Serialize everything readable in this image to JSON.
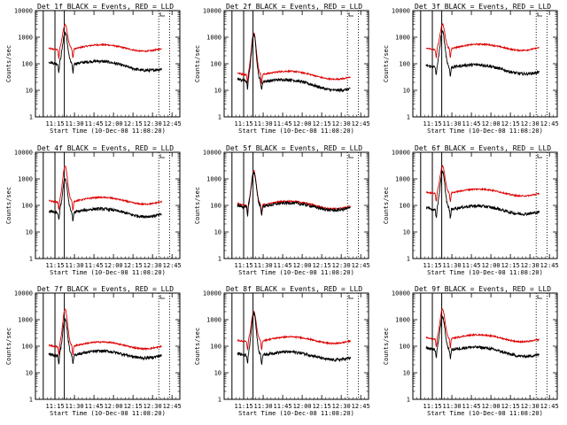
{
  "chart_data": {
    "type": "line",
    "layout": "3x3",
    "xlabel": "Start Time (10-Dec-08 11:08:20)",
    "ylabel": "Counts/sec",
    "x_range_min": [
      11.0,
      12.85
    ],
    "x_ticks": [
      "11:15",
      "11:30",
      "11:45",
      "12:00",
      "12:15",
      "12:30",
      "12:45"
    ],
    "y_scale": "log",
    "ylim": [
      1,
      10000
    ],
    "y_ticks": [
      "1",
      "10",
      "100",
      "1000",
      "10000"
    ],
    "legend_text": "BLACK = Events, RED = LLD",
    "series_colors": {
      "events": "#000000",
      "lld": "#dd0000"
    },
    "peak_time_min": 11.38,
    "panels": [
      {
        "title": "Det 1f BLACK = Events, RED = LLD",
        "events_base": 150,
        "events_end": 60,
        "events_peak": 1500,
        "lld_base": 450,
        "lld_end": 380,
        "lld_peak": 3000,
        "dip_at": [
          11.3,
          11.48
        ],
        "marks_min": [
          11.1,
          11.25,
          11.37,
          12.58,
          12.72
        ]
      },
      {
        "title": "Det 2f BLACK = Events, RED = LLD",
        "events_base": 35,
        "events_end": 10,
        "events_peak": 1300,
        "lld_base": 55,
        "lld_end": 30,
        "lld_peak": 1500,
        "dip_at": [
          11.3,
          11.48
        ],
        "marks_min": [
          11.1,
          11.25,
          11.37,
          12.58,
          12.72
        ]
      },
      {
        "title": "Det 3f BLACK = Events, RED = LLD",
        "events_base": 110,
        "events_end": 45,
        "events_peak": 1600,
        "lld_base": 450,
        "lld_end": 420,
        "lld_peak": 3000,
        "dip_at": [
          11.3,
          11.48
        ],
        "marks_min": [
          11.1,
          11.25,
          11.37,
          12.58,
          12.72
        ]
      },
      {
        "title": "Det 4f BLACK = Events, RED = LLD",
        "events_base": 75,
        "events_end": 45,
        "events_peak": 1000,
        "lld_base": 180,
        "lld_end": 140,
        "lld_peak": 3000,
        "dip_at": [
          11.3,
          11.48
        ],
        "marks_min": [
          11.1,
          11.25,
          11.37,
          12.58,
          12.72
        ]
      },
      {
        "title": "Det 5f BLACK = Events, RED = LLD",
        "events_base": 120,
        "events_end": 80,
        "events_peak": 1800,
        "lld_base": 140,
        "lld_end": 90,
        "lld_peak": 2000,
        "dip_at": [
          11.3,
          11.48
        ],
        "marks_min": [
          11.1,
          11.25,
          11.37,
          12.58,
          12.72
        ]
      },
      {
        "title": "Det 6f BLACK = Events, RED = LLD",
        "events_base": 100,
        "events_end": 55,
        "events_peak": 1800,
        "lld_base": 380,
        "lld_end": 280,
        "lld_peak": 3000,
        "dip_at": [
          11.3,
          11.48
        ],
        "marks_min": [
          11.1,
          11.25,
          11.37,
          12.58,
          12.72
        ]
      },
      {
        "title": "Det 7f BLACK = Events, RED = LLD",
        "events_base": 60,
        "events_end": 45,
        "events_peak": 1000,
        "lld_base": 130,
        "lld_end": 100,
        "lld_peak": 2500,
        "dip_at": [
          11.3,
          11.48
        ],
        "marks_min": [
          11.1,
          11.25,
          11.37,
          12.58,
          12.72
        ]
      },
      {
        "title": "Det 8f BLACK = Events, RED = LLD",
        "events_base": 65,
        "events_end": 35,
        "events_peak": 1800,
        "lld_base": 200,
        "lld_end": 160,
        "lld_peak": 2000,
        "dip_at": [
          11.3,
          11.48
        ],
        "marks_min": [
          11.1,
          11.25,
          11.37,
          12.58,
          12.72
        ]
      },
      {
        "title": "Det 9f BLACK = Events, RED = LLD",
        "events_base": 110,
        "events_end": 45,
        "events_peak": 1300,
        "lld_base": 250,
        "lld_end": 180,
        "lld_peak": 2500,
        "dip_at": [
          11.3,
          11.48
        ],
        "marks_min": [
          11.1,
          11.25,
          11.37,
          12.58,
          12.72
        ]
      }
    ]
  }
}
